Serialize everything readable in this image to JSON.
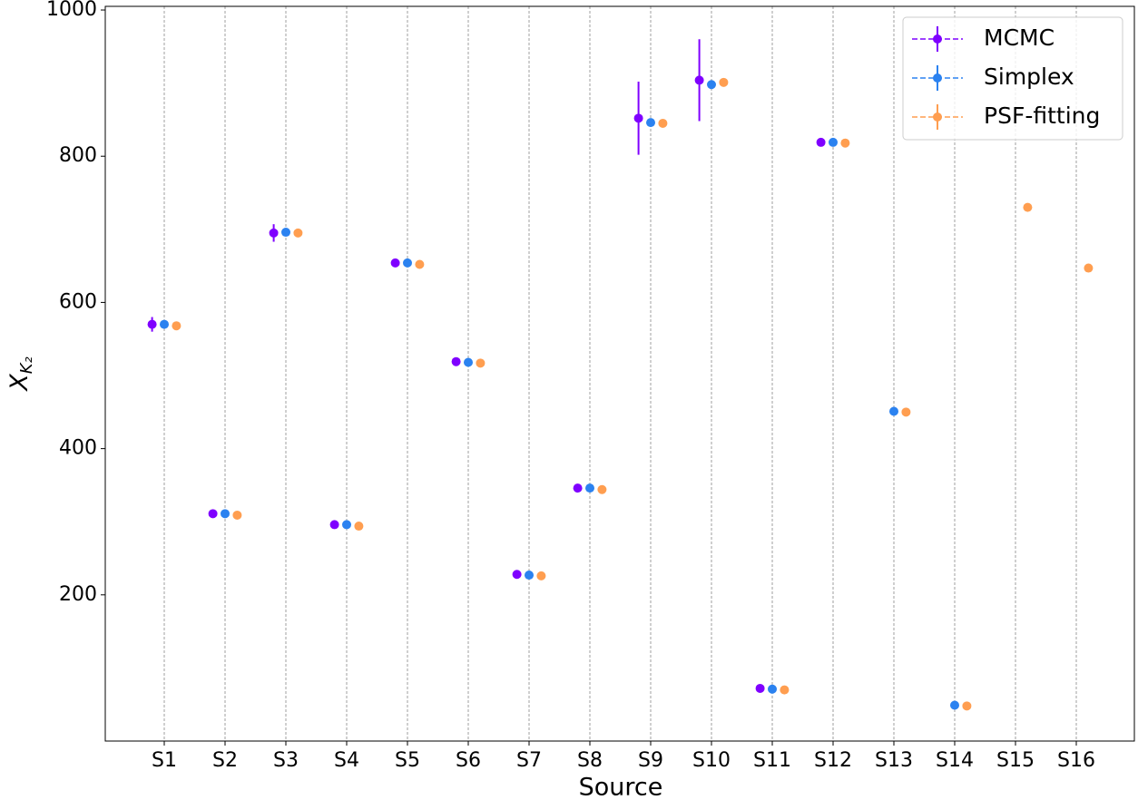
{
  "chart_data": {
    "type": "errorbar-scatter",
    "xlabel": "Source",
    "ylabel": "X",
    "ylabel_subscript": "K₂",
    "categories": [
      "S1",
      "S2",
      "S3",
      "S4",
      "S5",
      "S6",
      "S7",
      "S8",
      "S9",
      "S10",
      "S11",
      "S12",
      "S13",
      "S14",
      "S15",
      "S16"
    ],
    "ylim": [
      0,
      1005
    ],
    "yticks": [
      200,
      400,
      600,
      800,
      1000
    ],
    "grid": true,
    "legend": "upper right",
    "series": [
      {
        "name": "MCMC",
        "color": "#7f00ff",
        "values": [
          570,
          311,
          695,
          296,
          654,
          519,
          228,
          346,
          852,
          904,
          72,
          819,
          null,
          null,
          null,
          null
        ],
        "errors": [
          10,
          3,
          12,
          3,
          3,
          3,
          3,
          3,
          50,
          56,
          3,
          3,
          null,
          null,
          null,
          null
        ]
      },
      {
        "name": "Simplex",
        "color": "#2b82f0",
        "values": [
          570,
          311,
          696,
          296,
          654,
          518,
          227,
          346,
          846,
          898,
          71,
          819,
          451,
          49,
          null,
          null
        ]
      },
      {
        "name": "PSF-fitting",
        "color": "#ff9e50",
        "values": [
          568,
          309,
          695,
          294,
          652,
          517,
          226,
          344,
          845,
          901,
          70,
          818,
          450,
          48,
          730,
          647
        ]
      }
    ]
  }
}
